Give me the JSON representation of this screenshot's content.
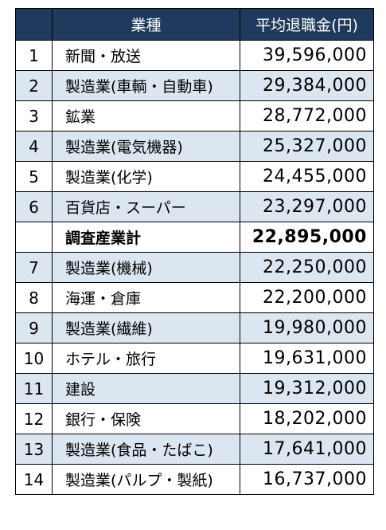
{
  "table": {
    "headers": [
      "",
      "業種",
      "平均退職金(円)"
    ],
    "rows": [
      {
        "rank": "1",
        "industry": "新聞・放送",
        "amount": "39,596,000",
        "style": "plain"
      },
      {
        "rank": "2",
        "industry": "製造業(車輌・自動車)",
        "amount": "29,384,000",
        "style": "shaded"
      },
      {
        "rank": "3",
        "industry": "鉱業",
        "amount": "28,772,000",
        "style": "plain"
      },
      {
        "rank": "4",
        "industry": "製造業(電気機器)",
        "amount": "25,327,000",
        "style": "shaded"
      },
      {
        "rank": "5",
        "industry": "製造業(化学)",
        "amount": "24,455,000",
        "style": "plain"
      },
      {
        "rank": "6",
        "industry": "百貨店・スーパー",
        "amount": "23,297,000",
        "style": "shaded"
      },
      {
        "rank": "",
        "industry": "調査産業計",
        "amount": "22,895,000",
        "style": "total"
      },
      {
        "rank": "7",
        "industry": "製造業(機械)",
        "amount": "22,250,000",
        "style": "shaded"
      },
      {
        "rank": "8",
        "industry": "海運・倉庫",
        "amount": "22,200,000",
        "style": "plain"
      },
      {
        "rank": "9",
        "industry": "製造業(繊維)",
        "amount": "19,980,000",
        "style": "shaded"
      },
      {
        "rank": "10",
        "industry": "ホテル・旅行",
        "amount": "19,631,000",
        "style": "plain"
      },
      {
        "rank": "11",
        "industry": "建設",
        "amount": "19,312,000",
        "style": "shaded"
      },
      {
        "rank": "12",
        "industry": "銀行・保険",
        "amount": "18,202,000",
        "style": "plain"
      },
      {
        "rank": "13",
        "industry": "製造業(食品・たばこ)",
        "amount": "17,641,000",
        "style": "shaded"
      },
      {
        "rank": "14",
        "industry": "製造業(パルプ・製紙)",
        "amount": "16,737,000",
        "style": "plain"
      }
    ]
  },
  "colors": {
    "header_bg": "#1F3A5C",
    "header_text": "#FFFFFF",
    "shaded_row": "#DCE6F1",
    "border": "#000000"
  }
}
